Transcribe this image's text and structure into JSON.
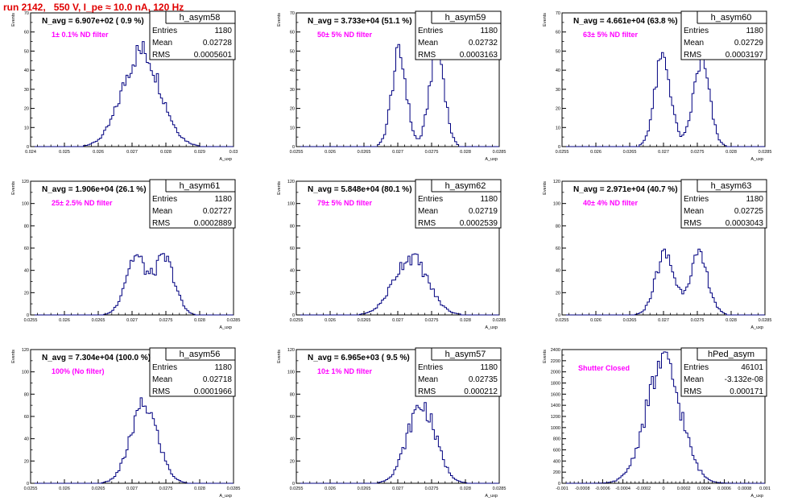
{
  "run_title": "run 2142,   550 V, I_pe ≈ 10.0 nA, 120 Hz",
  "colors": {
    "histogram": "#000080",
    "annotation": "#ff00ff",
    "title": "#e00000",
    "axes": "#000000"
  },
  "stats_labels": {
    "entries": "Entries",
    "mean": "Mean",
    "rms": "RMS"
  },
  "y_axis_label": "Events",
  "x_axis_label": "A_uxp",
  "chart_data": [
    {
      "type": "histogram",
      "name": "h_asym58",
      "title": "N_avg = 6.907e+02 ( 0.9 %)",
      "annotation": "1± 0.1% ND filter",
      "entries": "1180",
      "mean": "0.02728",
      "rms": "0.0005601",
      "xlim": [
        0.024,
        0.03
      ],
      "ylim": [
        0,
        70
      ],
      "x_ticks": [
        "0.024",
        "0.025",
        "0.026",
        "0.027",
        "0.028",
        "0.029",
        "0.03"
      ],
      "y_ticks": [
        "0",
        "10",
        "20",
        "30",
        "40",
        "50",
        "60",
        "70"
      ],
      "peaks": [
        {
          "mu": 0.02728,
          "sigma": 0.00056,
          "amp": 50
        }
      ],
      "nbins": 100
    },
    {
      "type": "histogram",
      "name": "h_asym59",
      "title": "N_avg = 3.733e+04 (51.1 %)",
      "annotation": "50± 5% ND filter",
      "entries": "1180",
      "mean": "0.02732",
      "rms": "0.0003163",
      "xlim": [
        0.0255,
        0.0285
      ],
      "ylim": [
        0,
        70
      ],
      "x_ticks": [
        "0.0255",
        "0.026",
        "0.0265",
        "0.027",
        "0.0275",
        "0.028",
        "0.0285"
      ],
      "y_ticks": [
        "0",
        "10",
        "20",
        "30",
        "40",
        "50",
        "60",
        "70"
      ],
      "peaks": [
        {
          "mu": 0.02702,
          "sigma": 0.00011,
          "amp": 48
        },
        {
          "mu": 0.02758,
          "sigma": 0.00011,
          "amp": 52
        }
      ],
      "nbins": 100
    },
    {
      "type": "histogram",
      "name": "h_asym60",
      "title": "N_avg = 4.661e+04 (63.8 %)",
      "annotation": "63± 5% ND filter",
      "entries": "1180",
      "mean": "0.02729",
      "rms": "0.0003197",
      "xlim": [
        0.0255,
        0.0285
      ],
      "ylim": [
        0,
        70
      ],
      "x_ticks": [
        "0.0255",
        "0.026",
        "0.0265",
        "0.027",
        "0.0275",
        "0.028",
        "0.0285"
      ],
      "y_ticks": [
        "0",
        "10",
        "20",
        "30",
        "40",
        "50",
        "60",
        "70"
      ],
      "peaks": [
        {
          "mu": 0.02699,
          "sigma": 0.00012,
          "amp": 46
        },
        {
          "mu": 0.02756,
          "sigma": 0.00012,
          "amp": 44
        }
      ],
      "nbins": 100
    },
    {
      "type": "histogram",
      "name": "h_asym61",
      "title": "N_avg = 1.906e+04 (26.1 %)",
      "annotation": "25± 2.5% ND filter",
      "entries": "1180",
      "mean": "0.02727",
      "rms": "0.0002889",
      "xlim": [
        0.0255,
        0.0285
      ],
      "ylim": [
        0,
        120
      ],
      "x_ticks": [
        "0.0255",
        "0.026",
        "0.0265",
        "0.027",
        "0.0275",
        "0.028",
        "0.0285"
      ],
      "y_ticks": [
        "0",
        "20",
        "40",
        "60",
        "80",
        "100",
        "120"
      ],
      "peaks": [
        {
          "mu": 0.02705,
          "sigma": 0.00015,
          "amp": 52
        },
        {
          "mu": 0.02748,
          "sigma": 0.00015,
          "amp": 50
        }
      ],
      "nbins": 100
    },
    {
      "type": "histogram",
      "name": "h_asym62",
      "title": "N_avg = 5.848e+04 (80.1 %)",
      "annotation": "79± 5% ND filter",
      "entries": "1180",
      "mean": "0.02719",
      "rms": "0.0002539",
      "xlim": [
        0.0255,
        0.0285
      ],
      "ylim": [
        0,
        120
      ],
      "x_ticks": [
        "0.0255",
        "0.026",
        "0.0265",
        "0.027",
        "0.0275",
        "0.028",
        "0.0285"
      ],
      "y_ticks": [
        "0",
        "20",
        "40",
        "60",
        "80",
        "100",
        "120"
      ],
      "peaks": [
        {
          "mu": 0.02719,
          "sigma": 0.00025,
          "amp": 52
        }
      ],
      "nbins": 100
    },
    {
      "type": "histogram",
      "name": "h_asym63",
      "title": "N_avg = 2.971e+04 (40.7 %)",
      "annotation": "40± 4% ND filter",
      "entries": "1180",
      "mean": "0.02725",
      "rms": "0.0003043",
      "xlim": [
        0.0255,
        0.0285
      ],
      "ylim": [
        0,
        120
      ],
      "x_ticks": [
        "0.0255",
        "0.026",
        "0.0265",
        "0.027",
        "0.0275",
        "0.028",
        "0.0285"
      ],
      "y_ticks": [
        "0",
        "20",
        "40",
        "60",
        "80",
        "100",
        "120"
      ],
      "peaks": [
        {
          "mu": 0.02702,
          "sigma": 0.00014,
          "amp": 54
        },
        {
          "mu": 0.02752,
          "sigma": 0.00014,
          "amp": 52
        }
      ],
      "nbins": 100
    },
    {
      "type": "histogram",
      "name": "h_asym56",
      "title": "N_avg = 7.304e+04 (100.0 %)",
      "annotation": "100% (No filter)",
      "entries": "1180",
      "mean": "0.02718",
      "rms": "0.0001966",
      "xlim": [
        0.0255,
        0.0285
      ],
      "ylim": [
        0,
        120
      ],
      "x_ticks": [
        "0.0255",
        "0.026",
        "0.0265",
        "0.027",
        "0.0275",
        "0.028",
        "0.0285"
      ],
      "y_ticks": [
        "0",
        "20",
        "40",
        "60",
        "80",
        "100",
        "120"
      ],
      "peaks": [
        {
          "mu": 0.02718,
          "sigma": 0.0002,
          "amp": 70
        }
      ],
      "nbins": 100
    },
    {
      "type": "histogram",
      "name": "h_asym57",
      "title": "N_avg = 6.965e+03 ( 9.5 %)",
      "annotation": "10± 1% ND filter",
      "entries": "1180",
      "mean": "0.02735",
      "rms": "0.000212",
      "xlim": [
        0.0255,
        0.0285
      ],
      "ylim": [
        0,
        120
      ],
      "x_ticks": [
        "0.0255",
        "0.026",
        "0.0265",
        "0.027",
        "0.0275",
        "0.028",
        "0.0285"
      ],
      "y_ticks": [
        "0",
        "20",
        "40",
        "60",
        "80",
        "100",
        "120"
      ],
      "peaks": [
        {
          "mu": 0.02735,
          "sigma": 0.00021,
          "amp": 70
        }
      ],
      "nbins": 100
    },
    {
      "type": "histogram",
      "name": "hPed_asym",
      "title": "",
      "annotation": "Shutter Closed",
      "entries": "46101",
      "mean": "-3.132e-08",
      "rms": "0.000171",
      "xlim": [
        -0.001,
        0.001
      ],
      "ylim": [
        0,
        2400
      ],
      "x_ticks": [
        "-0.001",
        "-0.0008",
        "-0.0006",
        "-0.0004",
        "-0.0002",
        "0",
        "0.0002",
        "0.0004",
        "0.0006",
        "0.0008",
        "0.001"
      ],
      "y_ticks": [
        "0",
        "200",
        "400",
        "600",
        "800",
        "1000",
        "1200",
        "1400",
        "1600",
        "1800",
        "2000",
        "2200",
        "2400"
      ],
      "peaks": [
        {
          "mu": 0.0,
          "sigma": 0.000171,
          "amp": 2150
        }
      ],
      "nbins": 100
    }
  ]
}
